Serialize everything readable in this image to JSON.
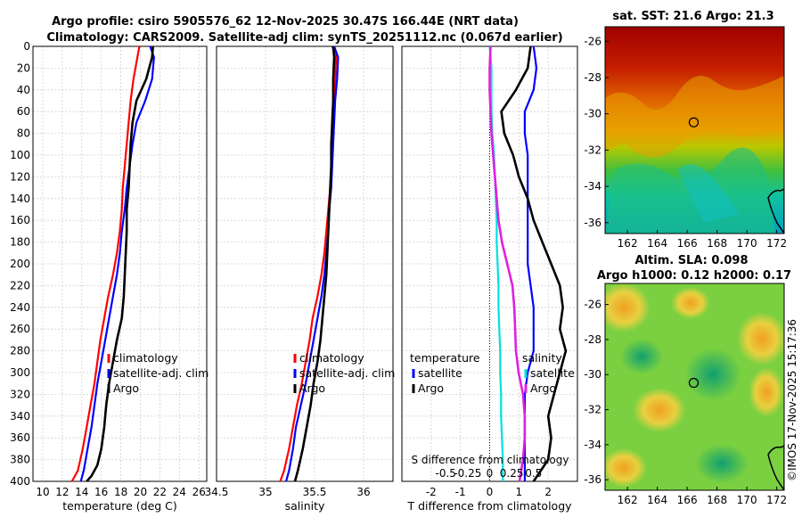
{
  "titles": {
    "line1": "Argo profile: csiro 5905576_62 12-Nov-2025 30.47S 166.44E (NRT data)",
    "line2": "Climatology: CARS2009. Satellite-adj clim: synTS_20251112.nc (0.067d earlier)",
    "sst": "sat. SST: 21.6 Argo: 21.3",
    "sla1": "Altim. SLA: 0.098",
    "sla2": "Argo h1000: 0.12 h2000: 0.17"
  },
  "side_label": "©IMOS 17-Nov-2025 15:17:36",
  "colors": {
    "clim": "#ff0000",
    "sat": "#0000ff",
    "argo": "#000000",
    "sal_diff": "#e020e0",
    "temp_diff": "#00e0e0"
  },
  "legend_left": [
    "climatology",
    "satellite-adj. clim",
    "Argo"
  ],
  "legend_diff_temp": [
    "temperature",
    "satellite",
    "Argo"
  ],
  "legend_diff_sal": [
    "salinity",
    "satellite",
    "Argo"
  ],
  "s_diff_label": "S difference from climatology",
  "chart_data": [
    {
      "type": "line",
      "title": "",
      "xlabel": "temperature (deg C)",
      "ylabel": "",
      "xlim": [
        9,
        26.8
      ],
      "ylim": [
        400,
        0
      ],
      "xticks": [
        "10",
        "12",
        "14",
        "16",
        "18",
        "20",
        "22",
        "24",
        "26"
      ],
      "yticks": [
        "0",
        "20",
        "40",
        "60",
        "80",
        "100",
        "120",
        "140",
        "160",
        "180",
        "200",
        "220",
        "240",
        "260",
        "280",
        "300",
        "320",
        "340",
        "360",
        "380",
        "400"
      ],
      "series": [
        {
          "name": "climatology",
          "x": [
            19.9,
            19.7,
            19.3,
            19.0,
            18.8,
            18.6,
            18.4,
            18.2,
            18.1,
            17.9,
            17.6,
            17.2,
            16.7,
            16.3,
            15.9,
            15.6,
            15.3,
            14.9,
            14.5,
            14.1,
            13.6,
            13.0
          ],
          "y": [
            0,
            10,
            30,
            50,
            70,
            90,
            110,
            130,
            150,
            170,
            190,
            210,
            230,
            250,
            270,
            290,
            310,
            330,
            350,
            370,
            390,
            400
          ]
        },
        {
          "name": "satellite-adj. clim",
          "x": [
            21.0,
            21.4,
            21.2,
            20.5,
            19.6,
            19.2,
            18.9,
            18.6,
            18.4,
            18.1,
            17.9,
            17.6,
            17.2,
            16.8,
            16.4,
            16.0,
            15.6,
            15.3,
            15.0,
            14.6,
            14.2,
            13.9
          ],
          "y": [
            0,
            10,
            30,
            50,
            70,
            90,
            110,
            130,
            150,
            170,
            190,
            210,
            230,
            250,
            270,
            290,
            310,
            330,
            350,
            370,
            390,
            400
          ]
        },
        {
          "name": "Argo",
          "x": [
            21.3,
            21.2,
            20.6,
            19.6,
            19.2,
            19.0,
            18.9,
            18.8,
            18.6,
            18.6,
            18.5,
            18.4,
            18.3,
            18.1,
            17.6,
            17.2,
            16.8,
            16.5,
            16.3,
            16.0,
            15.6,
            15.0,
            14.5
          ],
          "y": [
            0,
            10,
            30,
            50,
            70,
            90,
            110,
            130,
            150,
            170,
            190,
            210,
            230,
            250,
            270,
            290,
            310,
            330,
            350,
            370,
            385,
            395,
            400
          ]
        }
      ]
    },
    {
      "type": "line",
      "title": "",
      "xlabel": "salinity",
      "ylabel": "",
      "xlim": [
        34.5,
        36.3
      ],
      "ylim": [
        400,
        0
      ],
      "xticks": [
        "34.5",
        "35",
        "35.5",
        "36"
      ],
      "series": [
        {
          "name": "climatology",
          "x": [
            35.68,
            35.72,
            35.71,
            35.7,
            35.69,
            35.68,
            35.67,
            35.66,
            35.64,
            35.62,
            35.6,
            35.57,
            35.53,
            35.48,
            35.45,
            35.41,
            35.37,
            35.32,
            35.28,
            35.24,
            35.19,
            35.15
          ],
          "y": [
            0,
            10,
            30,
            50,
            70,
            90,
            110,
            130,
            150,
            170,
            190,
            210,
            230,
            250,
            270,
            290,
            310,
            330,
            350,
            370,
            390,
            400
          ]
        },
        {
          "name": "satellite-adj. clim",
          "x": [
            35.7,
            35.74,
            35.73,
            35.71,
            35.7,
            35.69,
            35.68,
            35.67,
            35.65,
            35.64,
            35.62,
            35.6,
            35.57,
            35.53,
            35.49,
            35.45,
            35.41,
            35.36,
            35.31,
            35.28,
            35.24,
            35.21
          ],
          "y": [
            0,
            10,
            30,
            50,
            70,
            90,
            110,
            130,
            150,
            170,
            190,
            210,
            230,
            250,
            270,
            290,
            310,
            330,
            350,
            370,
            390,
            400
          ]
        },
        {
          "name": "Argo",
          "x": [
            35.69,
            35.7,
            35.69,
            35.69,
            35.68,
            35.67,
            35.67,
            35.66,
            35.65,
            35.64,
            35.63,
            35.62,
            35.6,
            35.58,
            35.56,
            35.53,
            35.49,
            35.46,
            35.42,
            35.38,
            35.33,
            35.3
          ],
          "y": [
            0,
            10,
            30,
            50,
            70,
            90,
            110,
            130,
            150,
            170,
            190,
            210,
            230,
            250,
            270,
            290,
            310,
            330,
            350,
            370,
            390,
            400
          ]
        }
      ]
    },
    {
      "type": "line",
      "title": "",
      "xlabel": "T difference from climatology",
      "ylabel": "",
      "xlim": [
        -3.0,
        3.0
      ],
      "ylim": [
        400,
        0
      ],
      "xticks": [
        "-2",
        "-1",
        "0",
        "1",
        "2"
      ],
      "secondary_xlim": [
        -1.0,
        1.0
      ],
      "secondary_xticks": [
        "-0.5",
        "-0.25",
        "0",
        "0.25",
        "0.5"
      ],
      "series": [
        {
          "name": "temperature satellite",
          "x": [
            1.5,
            1.6,
            1.5,
            1.2,
            1.2,
            1.3,
            1.3,
            1.3,
            1.3,
            1.3,
            1.3,
            1.4,
            1.5,
            1.5,
            1.5,
            1.3,
            1.2,
            1.2,
            1.2,
            1.2,
            1.2
          ],
          "y": [
            0,
            20,
            40,
            60,
            80,
            100,
            120,
            140,
            160,
            180,
            200,
            220,
            240,
            260,
            280,
            300,
            320,
            340,
            360,
            380,
            400
          ]
        },
        {
          "name": "temperature Argo",
          "x": [
            1.4,
            1.3,
            0.9,
            0.4,
            0.5,
            0.8,
            1.0,
            1.3,
            1.5,
            1.8,
            2.1,
            2.4,
            2.5,
            2.4,
            2.6,
            2.4,
            2.2,
            2.0,
            2.1,
            2.0,
            1.5
          ],
          "y": [
            0,
            20,
            40,
            60,
            80,
            100,
            120,
            140,
            160,
            180,
            200,
            220,
            240,
            260,
            280,
            300,
            320,
            340,
            360,
            380,
            400
          ]
        },
        {
          "name": "salinity satellite",
          "x": [
            0.0,
            0.02,
            0.02,
            0.02,
            0.03,
            0.05,
            0.06,
            0.07,
            0.08,
            0.08,
            0.09,
            0.1,
            0.1,
            0.11,
            0.12,
            0.12,
            0.13,
            0.13,
            0.14,
            0.15,
            0.15
          ],
          "y": [
            0,
            20,
            40,
            60,
            80,
            100,
            120,
            140,
            160,
            180,
            200,
            220,
            240,
            260,
            280,
            300,
            320,
            340,
            360,
            380,
            400
          ]
        },
        {
          "name": "salinity Argo",
          "x": [
            0.01,
            0.0,
            0.0,
            0.01,
            0.02,
            0.04,
            0.06,
            0.08,
            0.1,
            0.14,
            0.2,
            0.26,
            0.28,
            0.29,
            0.3,
            0.33,
            0.38,
            0.4,
            0.4,
            0.38,
            0.34
          ],
          "y": [
            0,
            20,
            40,
            60,
            80,
            100,
            120,
            140,
            160,
            180,
            200,
            220,
            240,
            260,
            280,
            300,
            320,
            340,
            360,
            380,
            400
          ]
        }
      ]
    },
    {
      "type": "heatmap",
      "title": "sat. SST: 21.6 Argo: 21.3",
      "xlim": [
        160.5,
        172.5
      ],
      "ylim": [
        -36.6,
        -25.2
      ],
      "xticks": [
        "162",
        "164",
        "166",
        "168",
        "170",
        "172"
      ],
      "yticks": [
        "-26",
        "-28",
        "-30",
        "-32",
        "-34",
        "-36"
      ],
      "marker": {
        "lon": 166.44,
        "lat": -30.47
      }
    },
    {
      "type": "heatmap",
      "title": "Argo h1000: 0.12 h2000: 0.17",
      "xlim": [
        160.5,
        172.5
      ],
      "ylim": [
        -36.6,
        -24.8
      ],
      "xticks": [
        "162",
        "164",
        "166",
        "168",
        "170",
        "172"
      ],
      "yticks": [
        "-26",
        "-28",
        "-30",
        "-32",
        "-34",
        "-36"
      ],
      "marker": {
        "lon": 166.44,
        "lat": -30.47
      }
    }
  ]
}
